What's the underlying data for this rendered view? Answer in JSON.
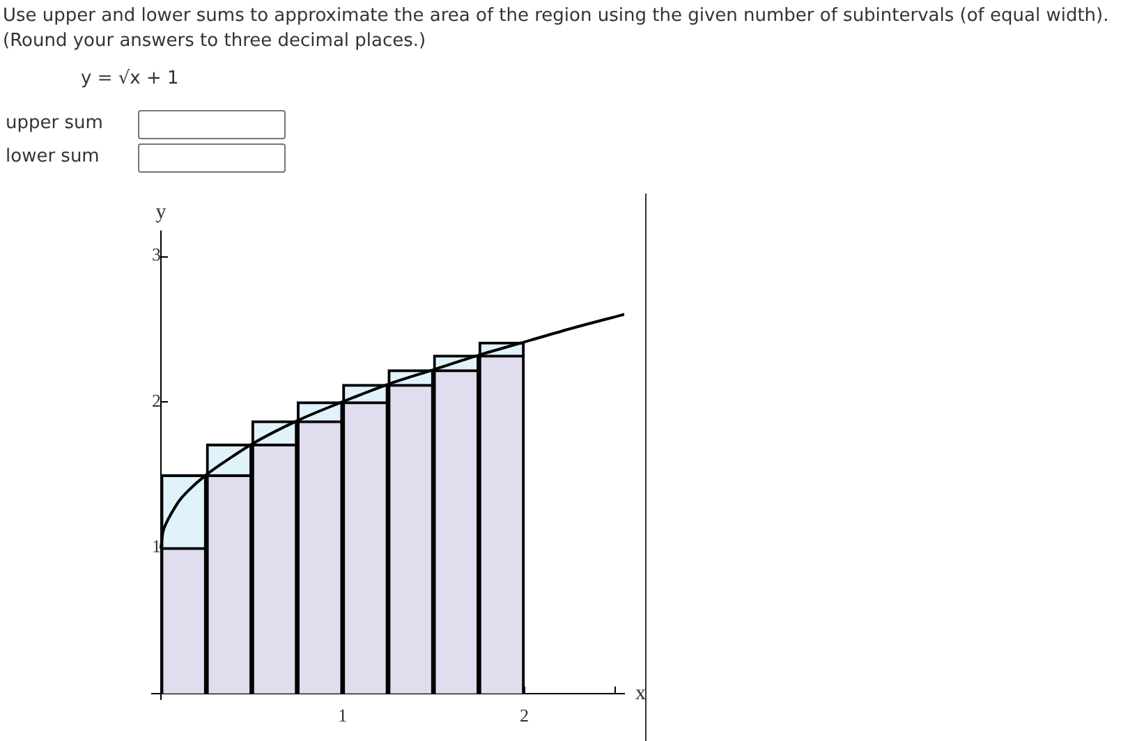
{
  "chart_data": {
    "type": "bar",
    "title": "Use upper and lower sums to approximate the area of the region using the given number of subintervals (of equal width).",
    "subtitle": "(Round your answers to three decimal places.)",
    "annotations": [
      "y = √x + 1",
      "upper sum",
      "lower sum"
    ],
    "xlabel": "x",
    "ylabel": "y",
    "x": [
      0.125,
      0.375,
      0.625,
      0.875,
      1.125,
      1.375,
      1.625,
      1.875
    ],
    "stacked": true,
    "series": [
      {
        "color": "#dfddee",
        "values": [
          1,
          1.5,
          1.71,
          1.87,
          2,
          2.12,
          2.22,
          2.32
        ]
      },
      {
        "color": "#e0f3fb",
        "values": [
          0.5,
          0.21,
          0.16,
          0.13,
          0.12,
          0.1,
          0.1,
          0.09
        ]
      },
      {
        "type": "line",
        "color": "#000000",
        "x": [
          0,
          0.01,
          0.03,
          0.06,
          0.1,
          0.15,
          0.25,
          0.4,
          0.5,
          0.75,
          1,
          1.25,
          1.5,
          1.75,
          2,
          2.25,
          2.55
        ],
        "values": [
          1,
          1.1,
          1.17,
          1.24,
          1.32,
          1.39,
          1.5,
          1.63,
          1.71,
          1.87,
          2,
          2.12,
          2.22,
          2.32,
          2.41,
          2.5,
          2.6
        ]
      }
    ],
    "xlim": [
      -0.05,
      2.55
    ],
    "ylim": [
      -0.04,
      3.17
    ],
    "xticks": [
      1,
      2,
      {
        "value": 2.5,
        "label": null
      }
    ],
    "yticks": [
      1,
      2,
      3
    ]
  }
}
